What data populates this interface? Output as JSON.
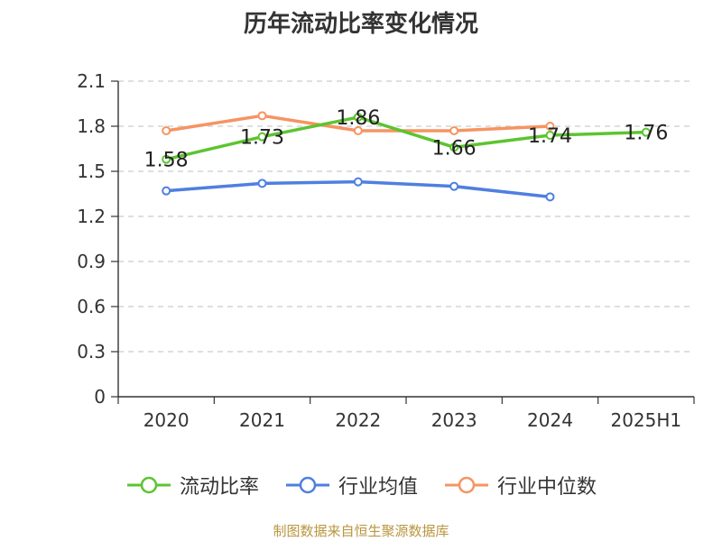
{
  "title": "历年流动比率变化情况",
  "source": "制图数据来自恒生聚源数据库",
  "colors": {
    "source": "#b8963f"
  },
  "chart_data": {
    "type": "line",
    "categories": [
      "2020",
      "2021",
      "2022",
      "2023",
      "2024",
      "2025H1"
    ],
    "ylim": [
      0,
      2.1
    ],
    "yticks": [
      0,
      0.3,
      0.6,
      0.9,
      1.2,
      1.5,
      1.8,
      2.1
    ],
    "ytick_labels": [
      "0",
      "0.3",
      "0.6",
      "0.9",
      "1.2",
      "1.5",
      "1.8",
      "2.1"
    ],
    "grid": true,
    "legend_position": "bottom",
    "series": [
      {
        "name": "流动比率",
        "color": "#5cc430",
        "values": [
          1.58,
          1.73,
          1.86,
          1.66,
          1.74,
          1.76
        ],
        "labels": [
          "1.58",
          "1.73",
          "1.86",
          "1.66",
          "1.74",
          "1.76"
        ]
      },
      {
        "name": "行业均值",
        "color": "#4f7fe0",
        "values": [
          1.37,
          1.42,
          1.43,
          1.4,
          1.33,
          null
        ]
      },
      {
        "name": "行业中位数",
        "color": "#f59462",
        "values": [
          1.77,
          1.87,
          1.77,
          1.77,
          1.8,
          null
        ]
      }
    ]
  }
}
